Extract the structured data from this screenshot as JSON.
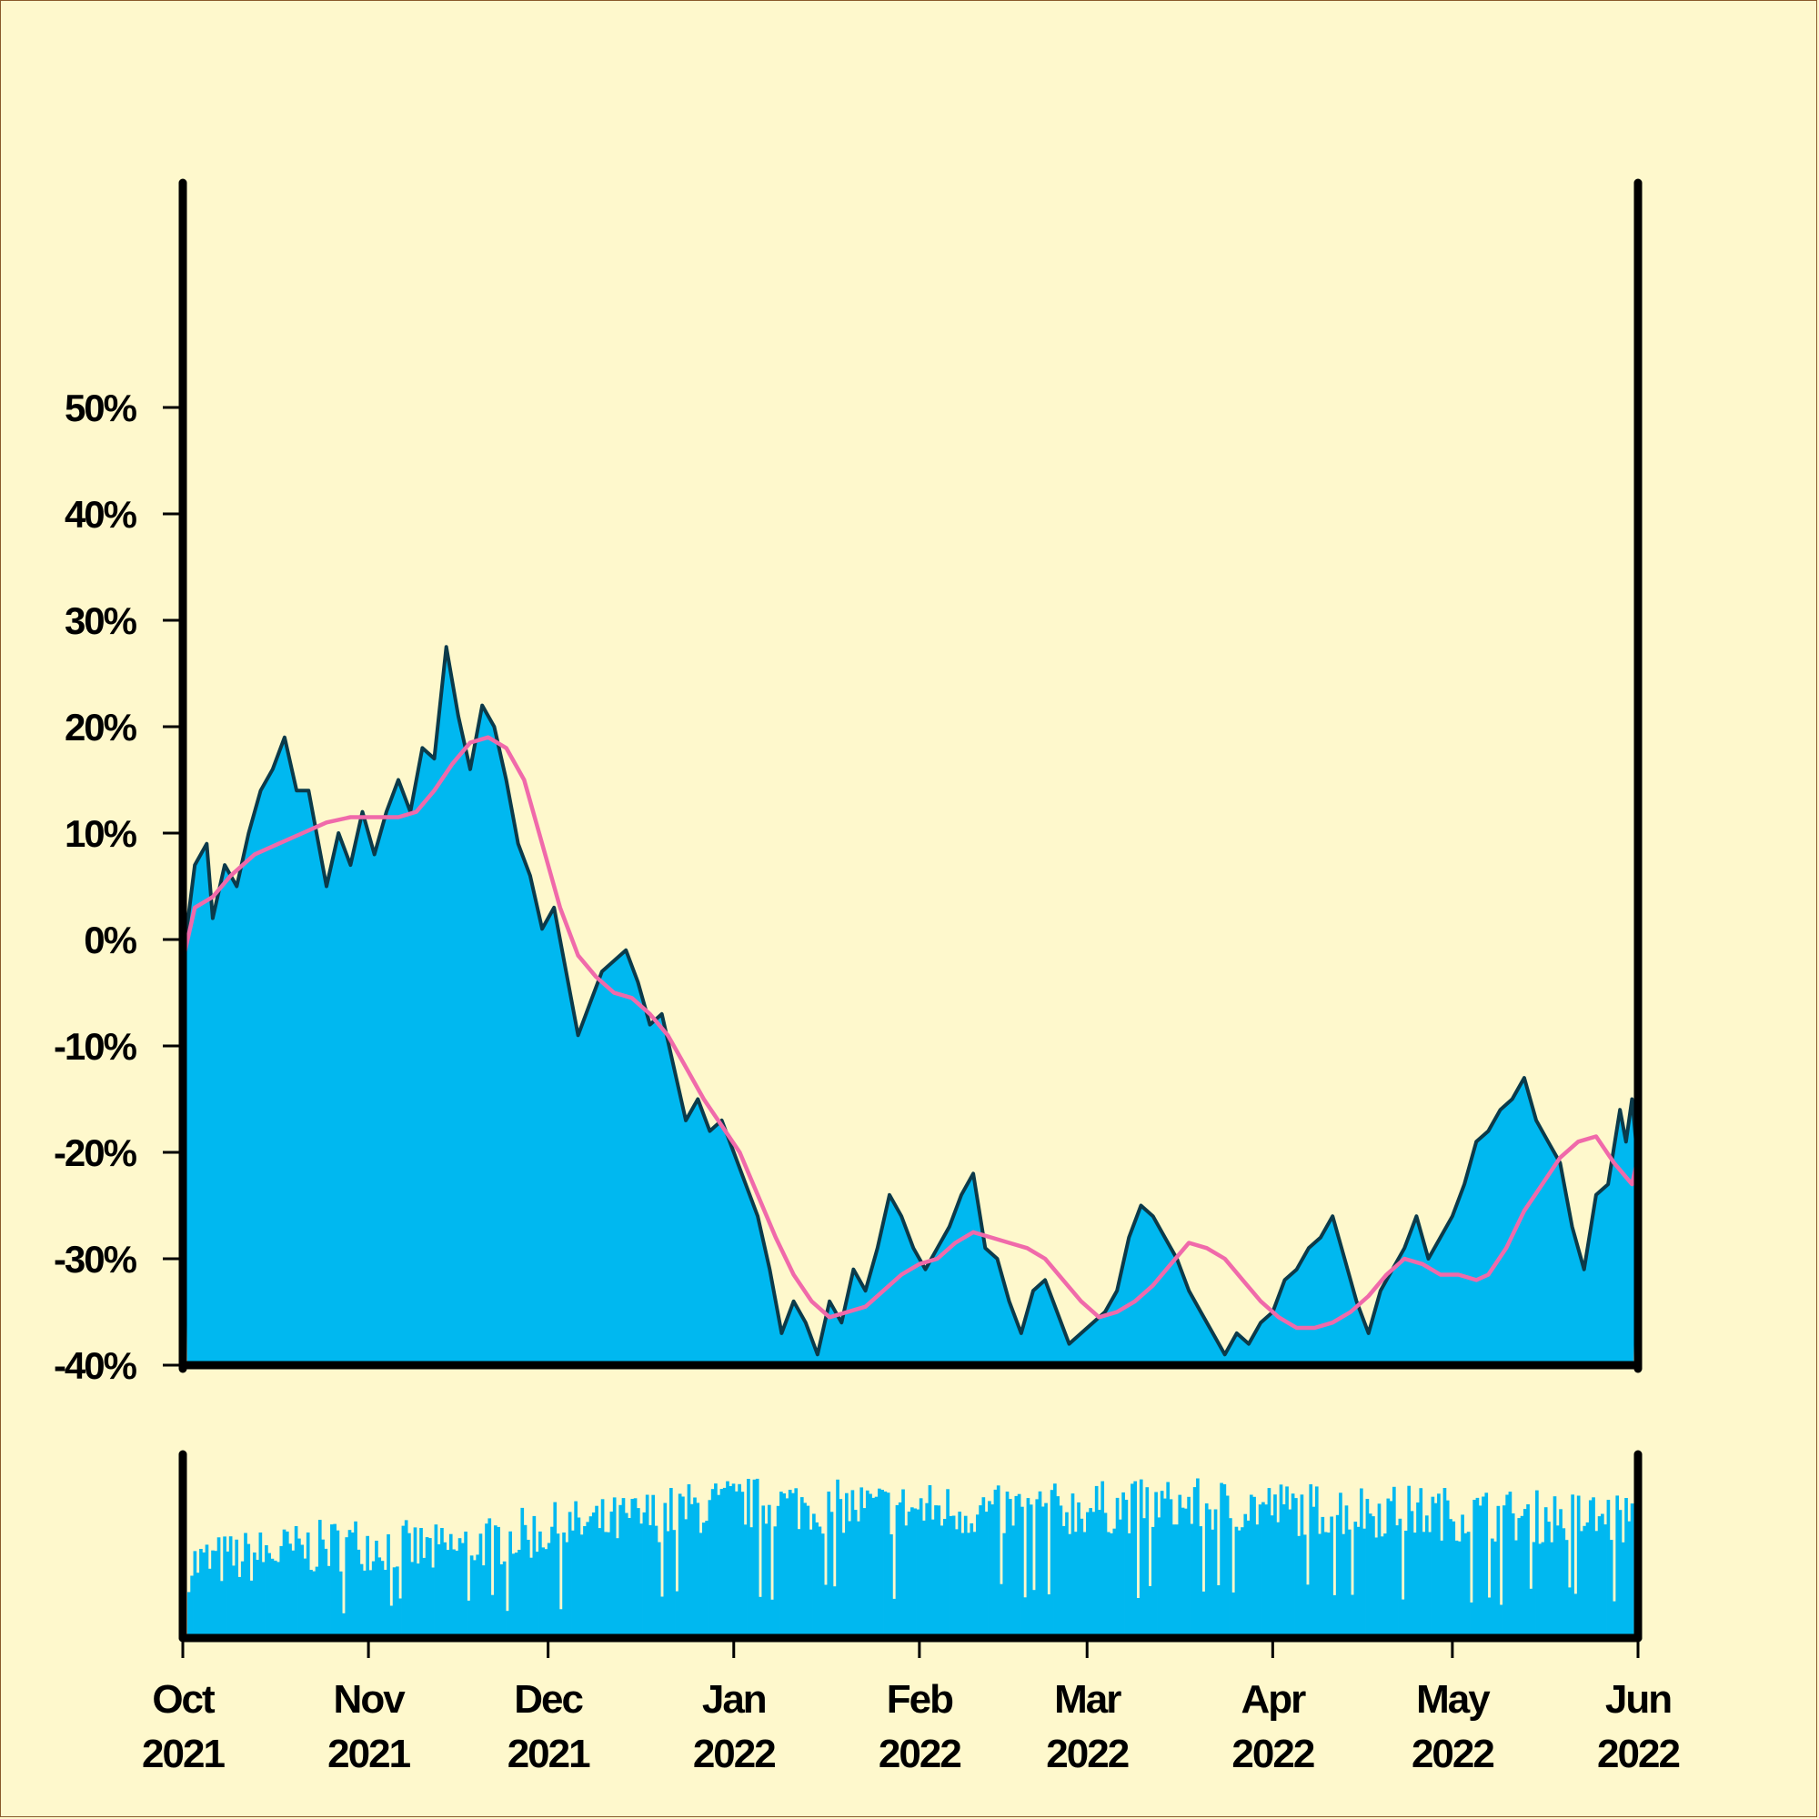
{
  "chart_data": [
    {
      "type": "area",
      "title": "",
      "xlabel": "",
      "ylabel": "",
      "x_range": [
        "2021-10-01",
        "2022-06-01"
      ],
      "ylim": [
        -40,
        60
      ],
      "y_ticks": [
        {
          "value": 50,
          "label": "50%"
        },
        {
          "value": 40,
          "label": "40%"
        },
        {
          "value": 30,
          "label": "30%"
        },
        {
          "value": 20,
          "label": "20%"
        },
        {
          "value": 10,
          "label": "10%"
        },
        {
          "value": 0,
          "label": "0%"
        },
        {
          "value": -10,
          "label": "-10%"
        },
        {
          "value": -20,
          "label": "-20%"
        },
        {
          "value": -30,
          "label": "-30%"
        },
        {
          "value": -40,
          "label": "-40%"
        }
      ],
      "grid": false,
      "series": [
        {
          "kind": "area",
          "fill": "#00b8f0",
          "stroke": "#0b3a4a",
          "points": [
            [
              "2021-10-01",
              -2
            ],
            [
              "2021-10-03",
              7
            ],
            [
              "2021-10-05",
              9
            ],
            [
              "2021-10-06",
              2
            ],
            [
              "2021-10-08",
              7
            ],
            [
              "2021-10-10",
              5
            ],
            [
              "2021-10-12",
              10
            ],
            [
              "2021-10-14",
              14
            ],
            [
              "2021-10-16",
              16
            ],
            [
              "2021-10-18",
              19
            ],
            [
              "2021-10-20",
              14
            ],
            [
              "2021-10-22",
              14
            ],
            [
              "2021-10-24",
              8
            ],
            [
              "2021-10-25",
              5
            ],
            [
              "2021-10-27",
              10
            ],
            [
              "2021-10-29",
              7
            ],
            [
              "2021-10-31",
              12
            ],
            [
              "2021-11-02",
              8
            ],
            [
              "2021-11-04",
              12
            ],
            [
              "2021-11-06",
              15
            ],
            [
              "2021-11-08",
              12
            ],
            [
              "2021-11-10",
              18
            ],
            [
              "2021-11-12",
              17
            ],
            [
              "2021-11-14",
              27.5
            ],
            [
              "2021-11-16",
              21
            ],
            [
              "2021-11-18",
              16
            ],
            [
              "2021-11-20",
              22
            ],
            [
              "2021-11-22",
              20
            ],
            [
              "2021-11-24",
              15
            ],
            [
              "2021-11-26",
              9
            ],
            [
              "2021-11-28",
              6
            ],
            [
              "2021-11-30",
              1
            ],
            [
              "2021-12-02",
              3
            ],
            [
              "2021-12-04",
              -3
            ],
            [
              "2021-12-06",
              -9
            ],
            [
              "2021-12-08",
              -6
            ],
            [
              "2021-12-10",
              -3
            ],
            [
              "2021-12-12",
              -2
            ],
            [
              "2021-12-14",
              -1
            ],
            [
              "2021-12-16",
              -4
            ],
            [
              "2021-12-18",
              -8
            ],
            [
              "2021-12-20",
              -7
            ],
            [
              "2021-12-22",
              -12
            ],
            [
              "2021-12-24",
              -17
            ],
            [
              "2021-12-26",
              -15
            ],
            [
              "2021-12-28",
              -18
            ],
            [
              "2021-12-30",
              -17
            ],
            [
              "2022-01-01",
              -20
            ],
            [
              "2022-01-03",
              -23
            ],
            [
              "2022-01-05",
              -26
            ],
            [
              "2022-01-07",
              -31
            ],
            [
              "2022-01-09",
              -37
            ],
            [
              "2022-01-11",
              -34
            ],
            [
              "2022-01-13",
              -36
            ],
            [
              "2022-01-15",
              -39
            ],
            [
              "2022-01-17",
              -34
            ],
            [
              "2022-01-19",
              -36
            ],
            [
              "2022-01-21",
              -31
            ],
            [
              "2022-01-23",
              -33
            ],
            [
              "2022-01-25",
              -29
            ],
            [
              "2022-01-27",
              -24
            ],
            [
              "2022-01-29",
              -26
            ],
            [
              "2022-01-31",
              -29
            ],
            [
              "2022-02-02",
              -31
            ],
            [
              "2022-02-04",
              -29
            ],
            [
              "2022-02-06",
              -27
            ],
            [
              "2022-02-08",
              -24
            ],
            [
              "2022-02-10",
              -22
            ],
            [
              "2022-02-12",
              -29
            ],
            [
              "2022-02-14",
              -30
            ],
            [
              "2022-02-16",
              -34
            ],
            [
              "2022-02-18",
              -37
            ],
            [
              "2022-02-20",
              -33
            ],
            [
              "2022-02-22",
              -32
            ],
            [
              "2022-02-24",
              -35
            ],
            [
              "2022-02-26",
              -38
            ],
            [
              "2022-02-28",
              -37
            ],
            [
              "2022-03-02",
              -36
            ],
            [
              "2022-03-04",
              -35
            ],
            [
              "2022-03-06",
              -33
            ],
            [
              "2022-03-08",
              -28
            ],
            [
              "2022-03-10",
              -25
            ],
            [
              "2022-03-12",
              -26
            ],
            [
              "2022-03-14",
              -28
            ],
            [
              "2022-03-16",
              -30
            ],
            [
              "2022-03-18",
              -33
            ],
            [
              "2022-03-20",
              -35
            ],
            [
              "2022-03-22",
              -37
            ],
            [
              "2022-03-24",
              -39
            ],
            [
              "2022-03-26",
              -37
            ],
            [
              "2022-03-28",
              -38
            ],
            [
              "2022-03-30",
              -36
            ],
            [
              "2022-04-01",
              -35
            ],
            [
              "2022-04-03",
              -32
            ],
            [
              "2022-04-05",
              -31
            ],
            [
              "2022-04-07",
              -29
            ],
            [
              "2022-04-09",
              -28
            ],
            [
              "2022-04-11",
              -26
            ],
            [
              "2022-04-13",
              -30
            ],
            [
              "2022-04-15",
              -34
            ],
            [
              "2022-04-17",
              -37
            ],
            [
              "2022-04-19",
              -33
            ],
            [
              "2022-04-21",
              -31
            ],
            [
              "2022-04-23",
              -29
            ],
            [
              "2022-04-25",
              -26
            ],
            [
              "2022-04-27",
              -30
            ],
            [
              "2022-04-29",
              -28
            ],
            [
              "2022-05-01",
              -26
            ],
            [
              "2022-05-03",
              -23
            ],
            [
              "2022-05-05",
              -19
            ],
            [
              "2022-05-07",
              -18
            ],
            [
              "2022-05-09",
              -16
            ],
            [
              "2022-05-11",
              -15
            ],
            [
              "2022-05-13",
              -13
            ],
            [
              "2022-05-15",
              -17
            ],
            [
              "2022-05-17",
              -19
            ],
            [
              "2022-05-19",
              -21
            ],
            [
              "2022-05-21",
              -27
            ],
            [
              "2022-05-23",
              -31
            ],
            [
              "2022-05-25",
              -24
            ],
            [
              "2022-05-27",
              -23
            ],
            [
              "2022-05-29",
              -16
            ],
            [
              "2022-05-30",
              -19
            ],
            [
              "2022-05-31",
              -15
            ],
            [
              "2022-06-01",
              -21
            ]
          ]
        },
        {
          "kind": "line",
          "stroke": "#f06aaa",
          "points": [
            [
              "2021-10-01",
              -2
            ],
            [
              "2021-10-03",
              3
            ],
            [
              "2021-10-06",
              4
            ],
            [
              "2021-10-09",
              6
            ],
            [
              "2021-10-13",
              8
            ],
            [
              "2021-10-17",
              9
            ],
            [
              "2021-10-21",
              10
            ],
            [
              "2021-10-25",
              11
            ],
            [
              "2021-10-29",
              11.5
            ],
            [
              "2021-11-02",
              11.5
            ],
            [
              "2021-11-06",
              11.5
            ],
            [
              "2021-11-09",
              12
            ],
            [
              "2021-11-12",
              14
            ],
            [
              "2021-11-15",
              16.5
            ],
            [
              "2021-11-18",
              18.5
            ],
            [
              "2021-11-21",
              19
            ],
            [
              "2021-11-24",
              18
            ],
            [
              "2021-11-27",
              15
            ],
            [
              "2021-11-30",
              9
            ],
            [
              "2021-12-03",
              3
            ],
            [
              "2021-12-06",
              -1.5
            ],
            [
              "2021-12-09",
              -3.5
            ],
            [
              "2021-12-12",
              -5
            ],
            [
              "2021-12-15",
              -5.5
            ],
            [
              "2021-12-18",
              -7
            ],
            [
              "2021-12-21",
              -9
            ],
            [
              "2021-12-24",
              -12
            ],
            [
              "2021-12-27",
              -15
            ],
            [
              "2021-12-30",
              -17.5
            ],
            [
              "2022-01-02",
              -20
            ],
            [
              "2022-01-05",
              -24
            ],
            [
              "2022-01-08",
              -28
            ],
            [
              "2022-01-11",
              -31.5
            ],
            [
              "2022-01-14",
              -34
            ],
            [
              "2022-01-17",
              -35.5
            ],
            [
              "2022-01-20",
              -35
            ],
            [
              "2022-01-23",
              -34.5
            ],
            [
              "2022-01-26",
              -33
            ],
            [
              "2022-01-29",
              -31.5
            ],
            [
              "2022-02-01",
              -30.5
            ],
            [
              "2022-02-04",
              -30
            ],
            [
              "2022-02-07",
              -28.5
            ],
            [
              "2022-02-10",
              -27.5
            ],
            [
              "2022-02-13",
              -28
            ],
            [
              "2022-02-16",
              -28.5
            ],
            [
              "2022-02-19",
              -29
            ],
            [
              "2022-02-22",
              -30
            ],
            [
              "2022-02-25",
              -32
            ],
            [
              "2022-02-28",
              -34
            ],
            [
              "2022-03-03",
              -35.5
            ],
            [
              "2022-03-06",
              -35
            ],
            [
              "2022-03-09",
              -34
            ],
            [
              "2022-03-12",
              -32.5
            ],
            [
              "2022-03-15",
              -30.5
            ],
            [
              "2022-03-18",
              -28.5
            ],
            [
              "2022-03-21",
              -29
            ],
            [
              "2022-03-24",
              -30
            ],
            [
              "2022-03-27",
              -32
            ],
            [
              "2022-03-30",
              -34
            ],
            [
              "2022-04-02",
              -35.5
            ],
            [
              "2022-04-05",
              -36.5
            ],
            [
              "2022-04-08",
              -36.5
            ],
            [
              "2022-04-11",
              -36
            ],
            [
              "2022-04-14",
              -35
            ],
            [
              "2022-04-17",
              -33.5
            ],
            [
              "2022-04-20",
              -31.5
            ],
            [
              "2022-04-23",
              -30
            ],
            [
              "2022-04-26",
              -30.5
            ],
            [
              "2022-04-29",
              -31.5
            ],
            [
              "2022-05-02",
              -31.5
            ],
            [
              "2022-05-05",
              -32
            ],
            [
              "2022-05-07",
              -31.5
            ],
            [
              "2022-05-10",
              -29
            ],
            [
              "2022-05-13",
              -25.5
            ],
            [
              "2022-05-16",
              -23
            ],
            [
              "2022-05-19",
              -20.5
            ],
            [
              "2022-05-22",
              -19
            ],
            [
              "2022-05-25",
              -18.5
            ],
            [
              "2022-05-28",
              -21
            ],
            [
              "2022-05-31",
              -23
            ],
            [
              "2022-06-01",
              -20.5
            ]
          ]
        }
      ]
    },
    {
      "type": "bar",
      "title": "",
      "xlabel": "",
      "ylabel": "",
      "fill": "#00b8f0",
      "x_range": [
        "2021-10-01",
        "2022-06-01"
      ],
      "x_ticks": [
        {
          "date": "2021-10-01",
          "month": "Oct",
          "year": "2021"
        },
        {
          "date": "2021-11-01",
          "month": "Nov",
          "year": "2021"
        },
        {
          "date": "2021-12-01",
          "month": "Dec",
          "year": "2021"
        },
        {
          "date": "2022-01-01",
          "month": "Jan",
          "year": "2022"
        },
        {
          "date": "2022-02-01",
          "month": "Feb",
          "year": "2022"
        },
        {
          "date": "2022-03-01",
          "month": "Mar",
          "year": "2022"
        },
        {
          "date": "2022-04-01",
          "month": "Apr",
          "year": "2022"
        },
        {
          "date": "2022-05-01",
          "month": "May",
          "year": "2022"
        },
        {
          "date": "2022-06-01",
          "month": "Jun",
          "year": "2022"
        }
      ],
      "bars_per_day": 2,
      "level_by_week": [
        0.4,
        0.43,
        0.46,
        0.49,
        0.52,
        0.5,
        0.47,
        0.52,
        0.56,
        0.6,
        0.62,
        0.66,
        0.7,
        0.73,
        0.73,
        0.72,
        0.71,
        0.7,
        0.7,
        0.69,
        0.69,
        0.7,
        0.71,
        0.72,
        0.72,
        0.72,
        0.71,
        0.7,
        0.7,
        0.69,
        0.68,
        0.67,
        0.66,
        0.66,
        0.65
      ],
      "variation": 0.15
    }
  ]
}
